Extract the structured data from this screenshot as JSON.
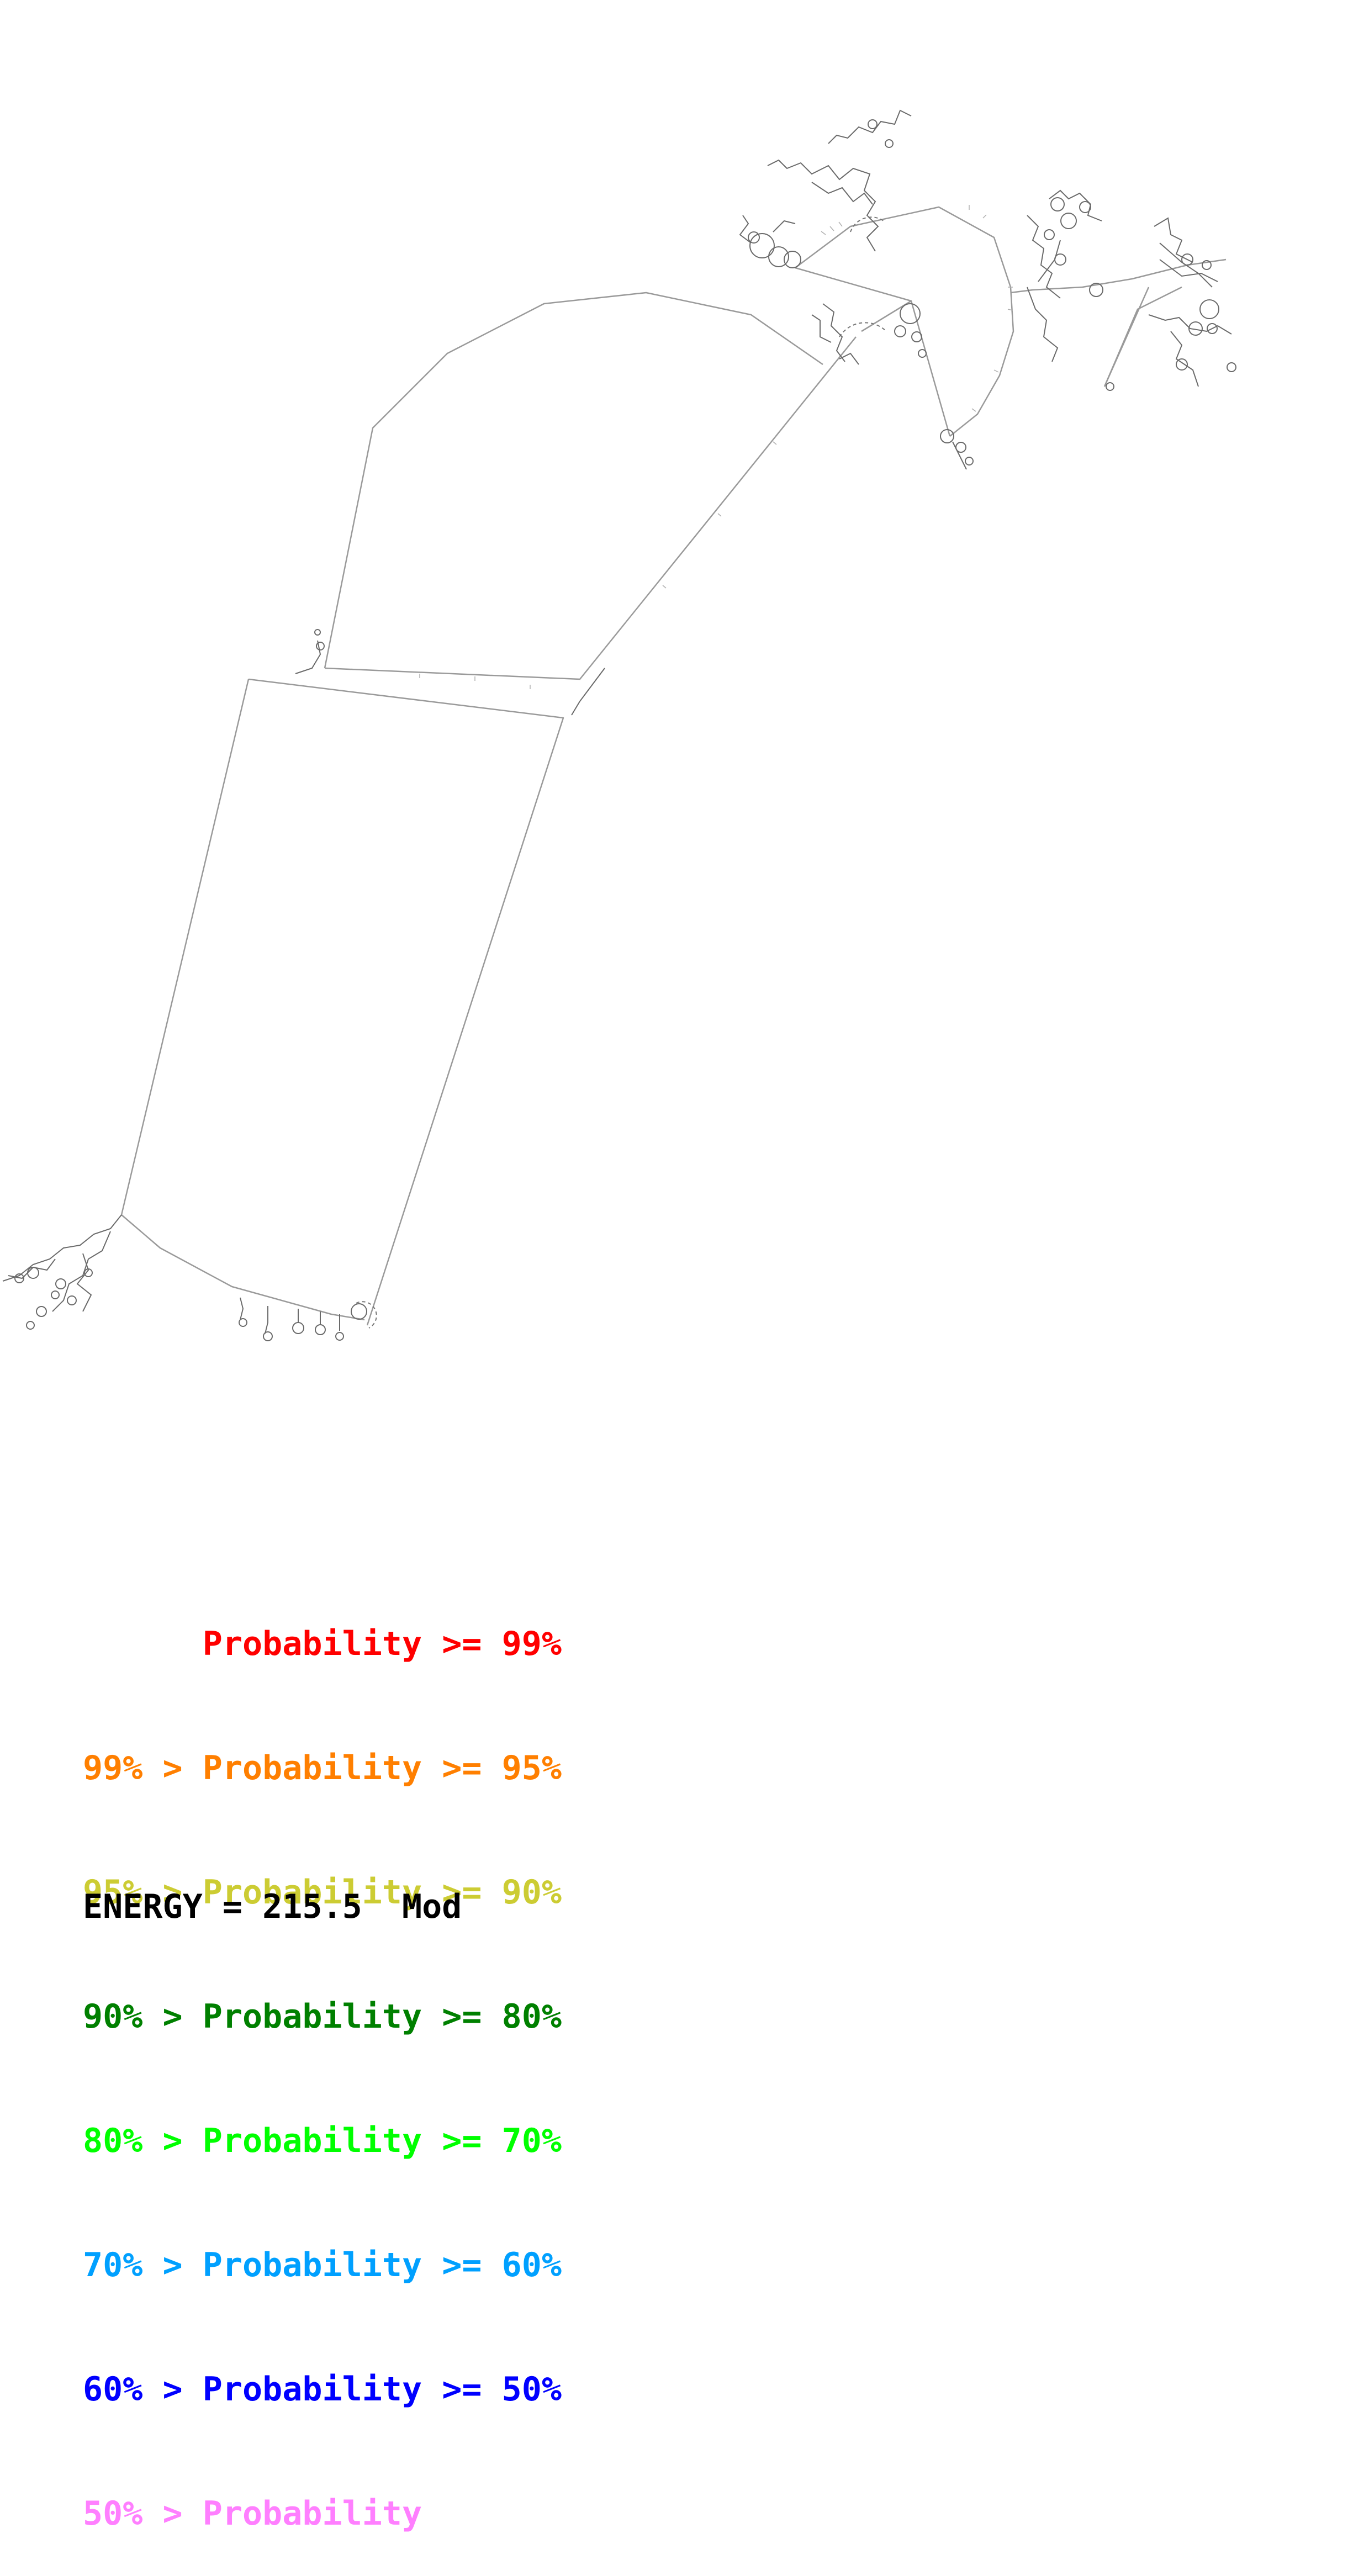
{
  "legend": {
    "items": [
      {
        "text": "      Probability >= 99%",
        "color": "#ff0000"
      },
      {
        "text": "99% > Probability >= 95%",
        "color": "#ff7f00"
      },
      {
        "text": "95% > Probability >= 90%",
        "color": "#cccc33"
      },
      {
        "text": "90% > Probability >= 80%",
        "color": "#008000"
      },
      {
        "text": "80% > Probability >= 70%",
        "color": "#00ff00"
      },
      {
        "text": "70% > Probability >= 60%",
        "color": "#00a0ff"
      },
      {
        "text": "60% > Probability >= 50%",
        "color": "#0000ff"
      },
      {
        "text": "50% > Probability",
        "color": "#ff7fff"
      }
    ]
  },
  "energy": {
    "label": "ENERGY = 215.5  Mod"
  }
}
